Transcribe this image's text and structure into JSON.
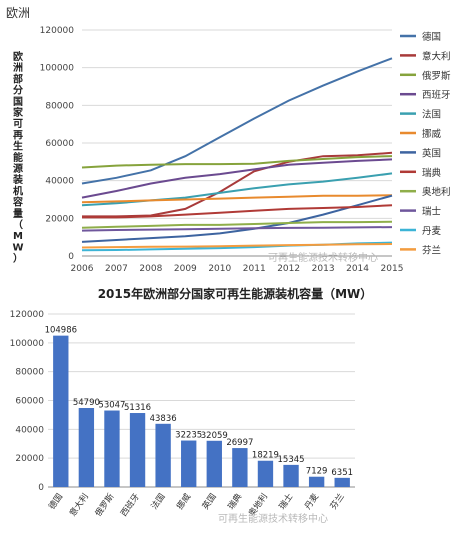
{
  "page": {
    "title": "欧洲"
  },
  "watermark": "可再生能源技术转移中心",
  "chart_data": [
    {
      "type": "line",
      "title": "",
      "ylabel": "欧洲部分国家可再生能源装机容量（MW）",
      "xlabel": "",
      "x": [
        2006,
        2007,
        2008,
        2009,
        2010,
        2011,
        2012,
        2013,
        2014,
        2015
      ],
      "y_ticks": [
        "0",
        "20000",
        "40000",
        "60000",
        "80000",
        "100000",
        "120000"
      ],
      "ylim": [
        0,
        120000
      ],
      "grid": true,
      "legend_position": "right",
      "series": [
        {
          "name": "德国",
          "color": "#4472a8",
          "values": [
            38500,
            41500,
            45500,
            53000,
            63000,
            73000,
            82500,
            90500,
            98000,
            105000
          ]
        },
        {
          "name": "意大利",
          "color": "#a83a3a",
          "values": [
            21000,
            21000,
            21500,
            25000,
            34000,
            45000,
            50000,
            53000,
            53500,
            54790
          ]
        },
        {
          "name": "俄罗斯",
          "color": "#86a33c",
          "values": [
            47000,
            48000,
            48500,
            48800,
            48800,
            49000,
            50500,
            51500,
            52500,
            53047
          ]
        },
        {
          "name": "西班牙",
          "color": "#6b4a90",
          "values": [
            31000,
            34500,
            38500,
            41500,
            43500,
            46000,
            48500,
            49500,
            50500,
            51316
          ]
        },
        {
          "name": "法国",
          "color": "#3aa0b0",
          "values": [
            27000,
            28000,
            29500,
            31000,
            33500,
            36000,
            38000,
            39500,
            41500,
            43836
          ]
        },
        {
          "name": "挪威",
          "color": "#e88a2e",
          "values": [
            28500,
            29000,
            29500,
            30000,
            30500,
            31000,
            31500,
            32000,
            32000,
            32235
          ]
        },
        {
          "name": "英国",
          "color": "#3d64a0",
          "values": [
            7500,
            8500,
            9500,
            10500,
            12000,
            14500,
            17500,
            22000,
            27000,
            32059
          ]
        },
        {
          "name": "瑞典",
          "color": "#b03a36",
          "values": [
            20500,
            20500,
            21000,
            22000,
            23000,
            24000,
            25000,
            25500,
            26000,
            26997
          ]
        },
        {
          "name": "奥地利",
          "color": "#8fae4a",
          "values": [
            15000,
            15500,
            16000,
            16500,
            16500,
            17000,
            17500,
            18000,
            18000,
            18219
          ]
        },
        {
          "name": "瑞士",
          "color": "#6f579c",
          "values": [
            13500,
            13800,
            14000,
            14200,
            14500,
            14700,
            14900,
            15000,
            15200,
            15345
          ]
        },
        {
          "name": "丹麦",
          "color": "#3cb4d6",
          "values": [
            3000,
            3200,
            3500,
            3800,
            4200,
            4700,
            5500,
            6000,
            6700,
            7129
          ]
        },
        {
          "name": "芬兰",
          "color": "#f39c3f",
          "values": [
            4500,
            4700,
            4900,
            5000,
            5200,
            5500,
            5800,
            6000,
            6200,
            6351
          ]
        }
      ]
    },
    {
      "type": "bar",
      "title": "2015年欧洲部分国家可再生能源装机容量（MW）",
      "xlabel": "",
      "ylabel": "",
      "categories": [
        "德国",
        "意大利",
        "俄罗斯",
        "西班牙",
        "法国",
        "挪威",
        "英国",
        "瑞典",
        "奥地利",
        "瑞士",
        "丹麦",
        "芬兰"
      ],
      "values": [
        104986,
        54790,
        53047,
        51316,
        43836,
        32235,
        32059,
        26997,
        18219,
        15345,
        7129,
        6351
      ],
      "data_labels": [
        "104986",
        "54790",
        "53047",
        "51316",
        "43836",
        "32235",
        "32059",
        "26997",
        "18219",
        "15345",
        "7129",
        "6351"
      ],
      "y_ticks": [
        "0",
        "20000",
        "40000",
        "60000",
        "80000",
        "100000",
        "120000"
      ],
      "ylim": [
        0,
        120000
      ],
      "grid": true,
      "bar_color": "#4472c4"
    }
  ]
}
